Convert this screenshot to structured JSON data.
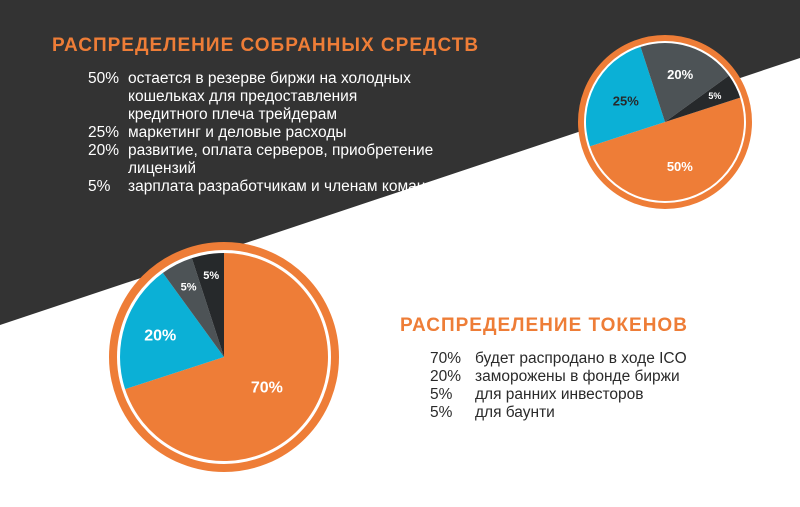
{
  "colors": {
    "dark_bg": "#333333",
    "light_bg": "#ffffff",
    "orange": "#ee7d37",
    "blue": "#0bb0d6",
    "gray": "#4d5356",
    "dark": "#26292b",
    "title": "#ee7d37"
  },
  "funds": {
    "title": "РАСПРЕДЕЛЕНИЕ СОБРАННЫХ СРЕДСТВ",
    "items": [
      {
        "percent": "50%",
        "text": "остается в резерве биржи на холодных\nкошельках для предоставления\nкредитного плеча трейдерам"
      },
      {
        "percent": "25%",
        "text": "маркетинг и деловые расходы"
      },
      {
        "percent": "20%",
        "text": "развитие, оплата серверов, приобретение\nлицензий"
      },
      {
        "percent": "5%",
        "text": "зарплата разработчикам и членам команды"
      }
    ]
  },
  "tokens": {
    "title": "РАСПРЕДЕЛЕНИЕ ТОКЕНОВ",
    "items": [
      {
        "percent": "70%",
        "text": "будет распродано в ходе ICO"
      },
      {
        "percent": "20%",
        "text": "заморожены в фонде биржи"
      },
      {
        "percent": "5%",
        "text": "для ранних инвесторов"
      },
      {
        "percent": "5%",
        "text": "для баунти"
      }
    ]
  },
  "chart_data": [
    {
      "type": "pie",
      "categories": [
        "50%",
        "25%",
        "20%",
        "5%"
      ],
      "values": [
        50,
        25,
        20,
        5
      ],
      "labels": [
        "50%",
        "25%",
        "20%",
        "5%"
      ],
      "colors": [
        "#ee7d37",
        "#0bb0d6",
        "#4d5356",
        "#26292b"
      ],
      "label_colors": [
        "#ffffff",
        "#26292b",
        "#ffffff",
        "#ffffff"
      ]
    },
    {
      "type": "pie",
      "categories": [
        "70%",
        "20%",
        "5%",
        "5%"
      ],
      "values": [
        70,
        20,
        5,
        5
      ],
      "labels": [
        "70%",
        "20%",
        "5%",
        "5%"
      ],
      "colors": [
        "#ee7d37",
        "#0bb0d6",
        "#4d5356",
        "#26292b"
      ],
      "label_colors": [
        "#ffffff",
        "#ffffff",
        "#ffffff",
        "#ffffff"
      ]
    }
  ]
}
